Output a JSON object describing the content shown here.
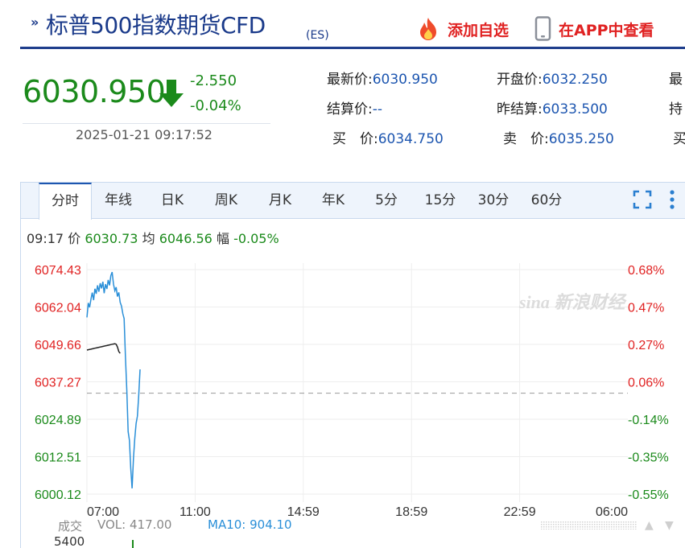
{
  "header": {
    "title": "标普500指数期货CFD",
    "code": "(ES)",
    "add_favorite": "添加自选",
    "view_in_app": "在APP中查看"
  },
  "quote": {
    "price": "6030.950",
    "change": "-2.550",
    "change_pct": "-0.04%",
    "datetime": "2025-01-21 09:17:52"
  },
  "stats": {
    "latest_label": "最新价:",
    "latest_value": "6030.950",
    "open_label": "开盘价:",
    "open_value": "6032.250",
    "col3_row1_label": "最",
    "settle_label": "结算价:",
    "settle_value": "--",
    "prev_settle_label": "昨结算:",
    "prev_settle_value": "6033.500",
    "col3_row2_label": "持",
    "buy_label": "买　价:",
    "buy_value": "6034.750",
    "sell_label": "卖　价:",
    "sell_value": "6035.250",
    "col3_row3_label": "买"
  },
  "tabs": [
    {
      "label": "分时",
      "active": true
    },
    {
      "label": "年线"
    },
    {
      "label": "日K"
    },
    {
      "label": "周K"
    },
    {
      "label": "月K"
    },
    {
      "label": "年K"
    },
    {
      "label": "5分"
    },
    {
      "label": "15分"
    },
    {
      "label": "30分"
    },
    {
      "label": "60分"
    }
  ],
  "info_bar": {
    "time": "09:17",
    "price_label": "价",
    "price": "6030.73",
    "avg_label": "均",
    "avg": "6046.56",
    "amp_label": "幅",
    "amp": "-0.05%"
  },
  "watermark": "sina 新浪财经",
  "volume": {
    "label": "成交",
    "vol_text": "VOL: 417.00",
    "ma_text": "MA10: 904.10",
    "axis_top": "5400"
  },
  "colors": {
    "up": "#e02222",
    "down": "#1b8a1b",
    "price_line": "#2a8fd8",
    "avg_line": "#222222",
    "value_blue": "#1d56b0"
  },
  "chart_data": {
    "type": "line",
    "title": "",
    "xlabel": "",
    "ylabel": "",
    "ylim": [
      6000.12,
      6074.43
    ],
    "reference_price": 6033.5,
    "left_ticks": [
      "6074.43",
      "6062.04",
      "6049.66",
      "6037.27",
      "6024.89",
      "6012.51",
      "6000.12"
    ],
    "right_ticks": [
      "0.68%",
      "0.47%",
      "0.27%",
      "0.06%",
      "-0.14%",
      "-0.35%",
      "-0.55%"
    ],
    "x_ticks": [
      "07:00",
      "11:00",
      "14:59",
      "18:59",
      "22:59",
      "06:00"
    ],
    "grid": true,
    "series": [
      {
        "name": "价",
        "values": [
          6058.6,
          6063.4,
          6061.9,
          6064.6,
          6066.8,
          6064.3,
          6068.1,
          6066.4,
          6069.2,
          6067.1,
          6069.9,
          6068.2,
          6070.4,
          6066.6,
          6069.6,
          6068.0,
          6071.0,
          6069.2,
          6072.4,
          6073.6,
          6069.6,
          6067.4,
          6068.6,
          6065.5,
          6066.9,
          6063.6,
          6062.4,
          6059.8,
          6058.2,
          6045.8,
          6034.8,
          6020.8,
          6017.9,
          6008.8,
          6002.0,
          6011.9,
          6018.4,
          6023.5,
          6025.9,
          6032.6,
          6041.4
        ]
      },
      {
        "name": "均",
        "values": [
          6047.8,
          6047.9,
          6048.0,
          6048.1,
          6048.2,
          6048.3,
          6048.4,
          6048.5,
          6048.6,
          6048.7,
          6048.8,
          6048.9,
          6049.0,
          6049.1,
          6049.2,
          6049.3,
          6049.4,
          6049.5,
          6049.6,
          6049.7,
          6049.8,
          6049.9,
          6049.7,
          6048.8,
          6047.3,
          6046.7
        ]
      }
    ]
  }
}
